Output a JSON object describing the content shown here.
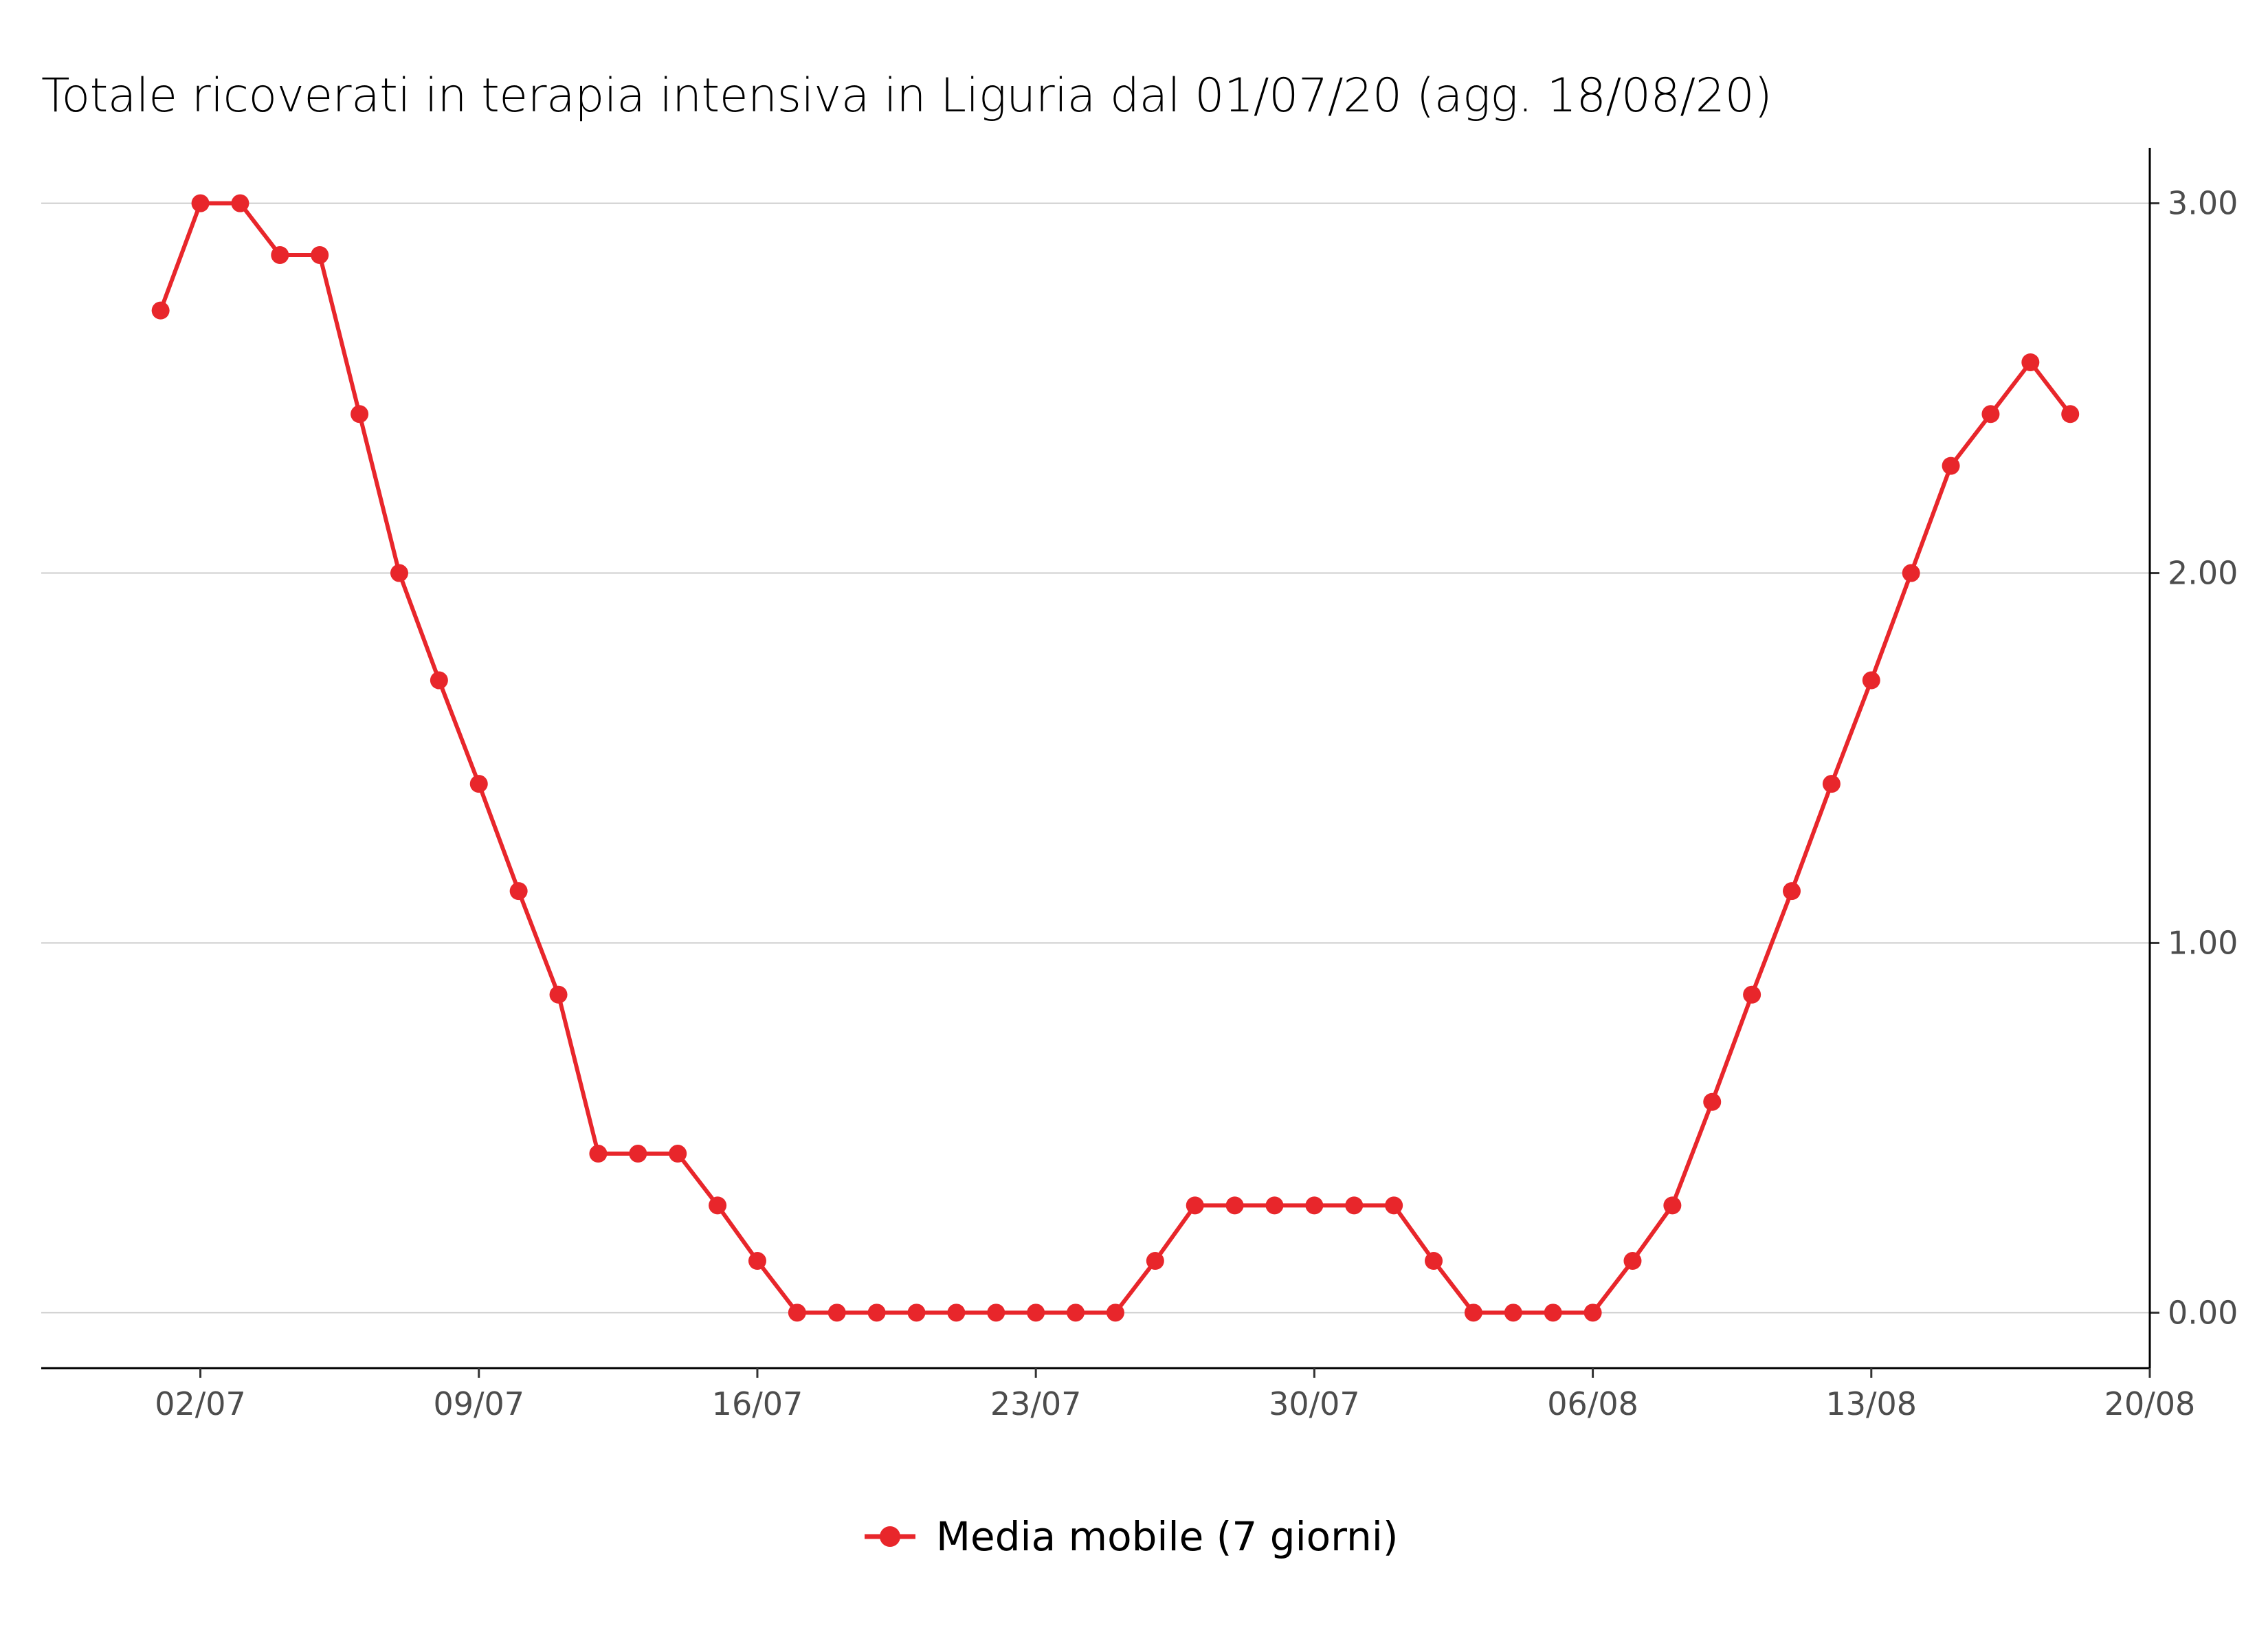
{
  "chart_data": {
    "type": "line",
    "title": "Totale ricoverati in terapia intensiva in Liguria dal 01/07/20 (agg. 18/08/20)",
    "xlabel": "",
    "ylabel": "",
    "x_axis": {
      "type": "date",
      "range": [
        "2020-06-28",
        "2020-08-20"
      ],
      "ticks": [
        "2020-07-02",
        "2020-07-09",
        "2020-07-16",
        "2020-07-23",
        "2020-07-30",
        "2020-08-06",
        "2020-08-13",
        "2020-08-20"
      ],
      "tick_labels": [
        "02/07",
        "09/07",
        "16/07",
        "23/07",
        "30/07",
        "06/08",
        "13/08",
        "20/08"
      ]
    },
    "y_axis": {
      "position": "right",
      "range": [
        -0.15,
        3.15
      ],
      "ticks": [
        0,
        1,
        2,
        3
      ],
      "tick_labels": [
        "0.00",
        "1.00",
        "2.00",
        "3.00"
      ]
    },
    "grid": "horizontal",
    "legend_position": "bottom",
    "series": [
      {
        "name": "Media mobile (7 giorni)",
        "color": "#e8262b",
        "marker": "circle",
        "x": [
          "2020-07-01",
          "2020-07-02",
          "2020-07-03",
          "2020-07-04",
          "2020-07-05",
          "2020-07-06",
          "2020-07-07",
          "2020-07-08",
          "2020-07-09",
          "2020-07-10",
          "2020-07-11",
          "2020-07-12",
          "2020-07-13",
          "2020-07-14",
          "2020-07-15",
          "2020-07-16",
          "2020-07-17",
          "2020-07-18",
          "2020-07-19",
          "2020-07-20",
          "2020-07-21",
          "2020-07-22",
          "2020-07-23",
          "2020-07-24",
          "2020-07-25",
          "2020-07-26",
          "2020-07-27",
          "2020-07-28",
          "2020-07-29",
          "2020-07-30",
          "2020-07-31",
          "2020-08-01",
          "2020-08-02",
          "2020-08-03",
          "2020-08-04",
          "2020-08-05",
          "2020-08-06",
          "2020-08-07",
          "2020-08-08",
          "2020-08-09",
          "2020-08-10",
          "2020-08-11",
          "2020-08-12",
          "2020-08-13",
          "2020-08-14",
          "2020-08-15",
          "2020-08-16",
          "2020-08-17",
          "2020-08-18"
        ],
        "y": [
          2.71,
          3.0,
          3.0,
          2.86,
          2.86,
          2.43,
          2.0,
          1.71,
          1.43,
          1.14,
          0.86,
          0.43,
          0.43,
          0.43,
          0.29,
          0.14,
          0.0,
          0.0,
          0.0,
          0.0,
          0.0,
          0.0,
          0.0,
          0.0,
          0.0,
          0.14,
          0.29,
          0.29,
          0.29,
          0.29,
          0.29,
          0.29,
          0.14,
          0.0,
          0.0,
          0.0,
          0.0,
          0.14,
          0.29,
          0.57,
          0.86,
          1.14,
          1.43,
          1.71,
          2.0,
          2.29,
          2.43,
          2.57,
          2.43
        ]
      }
    ]
  }
}
